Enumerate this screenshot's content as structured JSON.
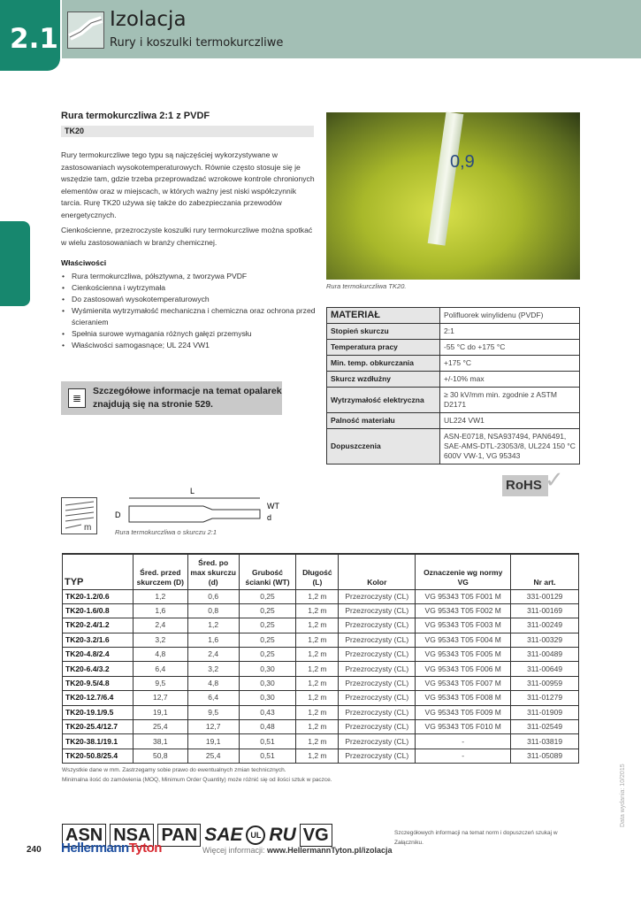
{
  "header": {
    "chapter": "2.1",
    "title": "Izolacja",
    "subtitle": "Rury i koszulki termokurczliwe"
  },
  "product": {
    "title": "Rura termokurczliwa 2:1 z PVDF",
    "code": "TK20",
    "paragraphs": [
      "Rury termokurczliwe tego typu są najczęściej wykorzystywane w zastosowaniach wysokotemperaturowych. Równie często stosuje się je wszędzie tam, gdzie trzeba przeprowadzać wzrokowe kontrole chronionych elementów oraz w miejscach, w których ważny jest niski współczynnik tarcia. Rurę TK20 używa się także do zabezpieczania przewodów energetycznych.",
      "Cienkościenne, przezroczyste koszulki rury termokurczliwe można spotkać w wielu zastosowaniach w branży chemicznej."
    ],
    "properties_title": "Właściwości",
    "properties": [
      "Rura termokurczliwa, półsztywna, z tworzywa PVDF",
      "Cienkościenna i wytrzymała",
      "Do zastosowań wysokotemperaturowych",
      "Wyśmienita wytrzymałość mechaniczna i chemiczna oraz ochrona przed ścieraniem",
      "Spełnia surowe wymagania różnych gałęzi przemysłu",
      "Właściwości samogasnące; UL 224 VW1"
    ],
    "note": "Szczegółowe informacje na temat opalarek znajdują się na stronie 529.",
    "photo_caption": "Rura termokurczliwa TK20.",
    "photo_label": "0,9"
  },
  "material": [
    [
      "MATERIAŁ",
      "Polifluorek winylidenu (PVDF)"
    ],
    [
      "Stopień skurczu",
      "2:1"
    ],
    [
      "Temperatura pracy",
      "-55 °C do +175 °C"
    ],
    [
      "Min. temp. obkurczania",
      "+175 °C"
    ],
    [
      "Skurcz wzdłużny",
      "+/-10% max"
    ],
    [
      "Wytrzymałość elektryczna",
      "≥ 30 kV/mm min. zgodnie z ASTM D2171"
    ],
    [
      "Palność materiału",
      "UL224 VW1"
    ],
    [
      "Dopuszczenia",
      "ASN-E0718, NSA937494, PAN6491, SAE-AMS-DTL-23053/8, UL224 150 °C 600V VW-1, VG 95343"
    ]
  ],
  "rohs": "RoHS",
  "diagram": {
    "labels": {
      "L": "L",
      "D": "D",
      "WT": "WT",
      "d": "d",
      "m": "m"
    },
    "caption": "Rura termokurczliwa o skurczu 2:1"
  },
  "table": {
    "headers": [
      "TYP",
      "Śred. przed skurczem (D)",
      "Śred. po max skurczu (d)",
      "Grubość ścianki (WT)",
      "Długość (L)",
      "Kolor",
      "Oznaczenie wg normy VG",
      "Nr art."
    ],
    "rows": [
      [
        "TK20-1.2/0.6",
        "1,2",
        "0,6",
        "0,25",
        "1,2 m",
        "Przezroczysty (CL)",
        "VG 95343 T05 F001 M",
        "331-00129"
      ],
      [
        "TK20-1.6/0.8",
        "1,6",
        "0,8",
        "0,25",
        "1,2 m",
        "Przezroczysty (CL)",
        "VG 95343 T05 F002 M",
        "311-00169"
      ],
      [
        "TK20-2.4/1.2",
        "2,4",
        "1,2",
        "0,25",
        "1,2 m",
        "Przezroczysty (CL)",
        "VG 95343 T05 F003 M",
        "311-00249"
      ],
      [
        "TK20-3.2/1.6",
        "3,2",
        "1,6",
        "0,25",
        "1,2 m",
        "Przezroczysty (CL)",
        "VG 95343 T05 F004 M",
        "311-00329"
      ],
      [
        "TK20-4.8/2.4",
        "4,8",
        "2,4",
        "0,25",
        "1,2 m",
        "Przezroczysty (CL)",
        "VG 95343 T05 F005 M",
        "311-00489"
      ],
      [
        "TK20-6.4/3.2",
        "6,4",
        "3,2",
        "0,30",
        "1,2 m",
        "Przezroczysty (CL)",
        "VG 95343 T05 F006 M",
        "311-00649"
      ],
      [
        "TK20-9.5/4.8",
        "9,5",
        "4,8",
        "0,30",
        "1,2 m",
        "Przezroczysty (CL)",
        "VG 95343 T05 F007 M",
        "311-00959"
      ],
      [
        "TK20-12.7/6.4",
        "12,7",
        "6,4",
        "0,30",
        "1,2 m",
        "Przezroczysty (CL)",
        "VG 95343 T05 F008 M",
        "311-01279"
      ],
      [
        "TK20-19.1/9.5",
        "19,1",
        "9,5",
        "0,43",
        "1,2 m",
        "Przezroczysty (CL)",
        "VG 95343 T05 F009 M",
        "311-01909"
      ],
      [
        "TK20-25.4/12.7",
        "25,4",
        "12,7",
        "0,48",
        "1,2 m",
        "Przezroczysty (CL)",
        "VG 95343 T05 F010 M",
        "311-02549"
      ],
      [
        "TK20-38.1/19.1",
        "38,1",
        "19,1",
        "0,51",
        "1,2 m",
        "Przezroczysty (CL)",
        "-",
        "311-03819"
      ],
      [
        "TK20-50.8/25.4",
        "50,8",
        "25,4",
        "0,51",
        "1,2 m",
        "Przezroczysty (CL)",
        "-",
        "311-05089"
      ]
    ]
  },
  "footnotes": [
    "Wszystkie dane w mm. Zastrzegamy sobie prawo do ewentualnych zmian technicznych.",
    "Minimalna ilość do zamówienia (MOQ, Minimum Order Quantity) może różnić się od ilości sztuk w paczce."
  ],
  "certifications": [
    "ASN",
    "NSA",
    "PAN",
    "SAE",
    "UL",
    "RU",
    "VG"
  ],
  "cert_note": "Szczegółowych informacji na temat norm i dopuszczeń szukaj w Załączniku.",
  "footer": {
    "page": "240",
    "brand_a": "Hellermann",
    "brand_b": "Tyton",
    "more_label": "Więcej informacji:",
    "url": "www.HellermannTyton.pl/izolacja",
    "date": "Data wydania: 10/2015"
  },
  "colors": {
    "teal": "#17876e",
    "band": "#a3bfb5",
    "brand_blue": "#1d4fa0",
    "brand_red": "#d8262e"
  }
}
